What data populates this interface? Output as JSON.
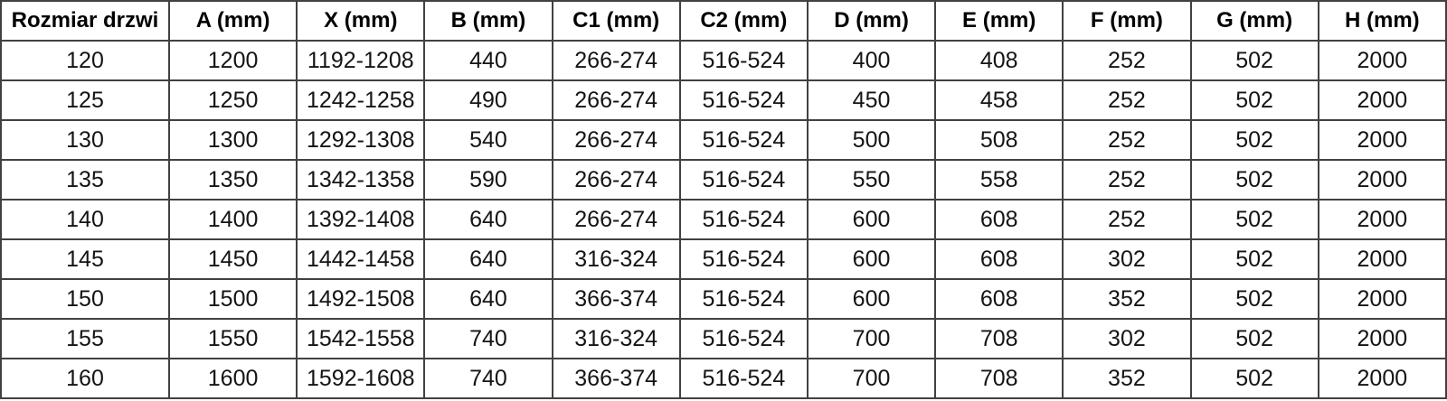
{
  "chart_data": {
    "type": "table",
    "title": "Door size dimensions table",
    "columns": [
      "Rozmiar drzwi",
      "A (mm)",
      "X (mm)",
      "B (mm)",
      "C1 (mm)",
      "C2 (mm)",
      "D (mm)",
      "E (mm)",
      "F (mm)",
      "G (mm)",
      "H (mm)"
    ],
    "rows": [
      [
        "120",
        "1200",
        "1192-1208",
        "440",
        "266-274",
        "516-524",
        "400",
        "408",
        "252",
        "502",
        "2000"
      ],
      [
        "125",
        "1250",
        "1242-1258",
        "490",
        "266-274",
        "516-524",
        "450",
        "458",
        "252",
        "502",
        "2000"
      ],
      [
        "130",
        "1300",
        "1292-1308",
        "540",
        "266-274",
        "516-524",
        "500",
        "508",
        "252",
        "502",
        "2000"
      ],
      [
        "135",
        "1350",
        "1342-1358",
        "590",
        "266-274",
        "516-524",
        "550",
        "558",
        "252",
        "502",
        "2000"
      ],
      [
        "140",
        "1400",
        "1392-1408",
        "640",
        "266-274",
        "516-524",
        "600",
        "608",
        "252",
        "502",
        "2000"
      ],
      [
        "145",
        "1450",
        "1442-1458",
        "640",
        "316-324",
        "516-524",
        "600",
        "608",
        "302",
        "502",
        "2000"
      ],
      [
        "150",
        "1500",
        "1492-1508",
        "640",
        "366-374",
        "516-524",
        "600",
        "608",
        "352",
        "502",
        "2000"
      ],
      [
        "155",
        "1550",
        "1542-1558",
        "740",
        "316-324",
        "516-524",
        "700",
        "708",
        "302",
        "502",
        "2000"
      ],
      [
        "160",
        "1600",
        "1592-1608",
        "740",
        "366-374",
        "516-524",
        "700",
        "708",
        "352",
        "502",
        "2000"
      ]
    ],
    "layout": {
      "grid": "on",
      "border_color": "#414141",
      "background": "#ffffff",
      "text_color": "#141414",
      "header_bold": true
    }
  }
}
